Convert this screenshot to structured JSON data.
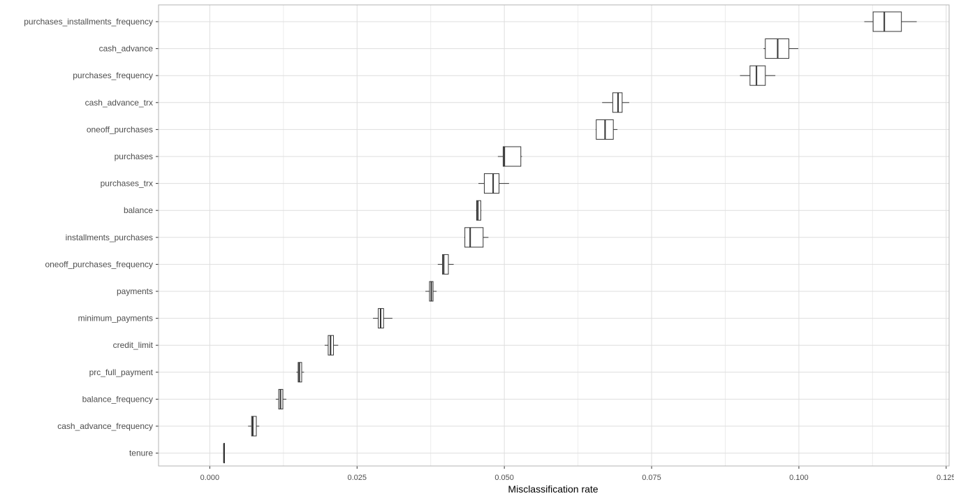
{
  "chart_data": {
    "type": "boxplot",
    "title": "",
    "xlabel": "Misclassification rate",
    "ylabel": "",
    "xlim": [
      -0.0087,
      0.1255
    ],
    "x_ticks": [
      0,
      0.025,
      0.05,
      0.075,
      0.1,
      0.125
    ],
    "x_tick_labels": [
      "0.000",
      "0.025",
      "0.050",
      "0.075",
      "0.100",
      "0.125"
    ],
    "grid": true,
    "orientation": "horizontal",
    "colors": {
      "box_stroke": "#333333",
      "grid_major": "#dedede",
      "grid_minor": "#ececec",
      "panel_border": "#b3b3b3",
      "background": "#ffffff"
    },
    "series": [
      {
        "category": "purchases_installments_frequency",
        "min": 0.1111,
        "q1": 0.1126,
        "median": 0.1145,
        "q3": 0.1174,
        "max": 0.12
      },
      {
        "category": "cash_advance",
        "min": 0.094,
        "q1": 0.0943,
        "median": 0.0964,
        "q3": 0.0983,
        "max": 0.0999
      },
      {
        "category": "purchases_frequency",
        "min": 0.09,
        "q1": 0.0917,
        "median": 0.0928,
        "q3": 0.0943,
        "max": 0.096
      },
      {
        "category": "cash_advance_trx",
        "min": 0.0666,
        "q1": 0.0684,
        "median": 0.0693,
        "q3": 0.07,
        "max": 0.0712
      },
      {
        "category": "oneoff_purchases",
        "min": 0.0655,
        "q1": 0.0656,
        "median": 0.0671,
        "q3": 0.0685,
        "max": 0.0692
      },
      {
        "category": "purchases",
        "min": 0.0489,
        "q1": 0.0498,
        "median": 0.05,
        "q3": 0.0528,
        "max": 0.053
      },
      {
        "category": "purchases_trx",
        "min": 0.0456,
        "q1": 0.0466,
        "median": 0.0481,
        "q3": 0.0491,
        "max": 0.0508
      },
      {
        "category": "balance",
        "min": 0.0452,
        "q1": 0.0453,
        "median": 0.0455,
        "q3": 0.046,
        "max": 0.0461
      },
      {
        "category": "installments_purchases",
        "min": 0.0432,
        "q1": 0.0433,
        "median": 0.0442,
        "q3": 0.0464,
        "max": 0.0473
      },
      {
        "category": "oneoff_purchases_frequency",
        "min": 0.0387,
        "q1": 0.0395,
        "median": 0.0397,
        "q3": 0.0405,
        "max": 0.0414
      },
      {
        "category": "payments",
        "min": 0.0366,
        "q1": 0.0373,
        "median": 0.0376,
        "q3": 0.0379,
        "max": 0.0385
      },
      {
        "category": "minimum_payments",
        "min": 0.0277,
        "q1": 0.0286,
        "median": 0.029,
        "q3": 0.0295,
        "max": 0.031
      },
      {
        "category": "credit_limit",
        "min": 0.0195,
        "q1": 0.0201,
        "median": 0.0205,
        "q3": 0.021,
        "max": 0.0218
      },
      {
        "category": "prc_full_payment",
        "min": 0.0147,
        "q1": 0.015,
        "median": 0.0152,
        "q3": 0.0156,
        "max": 0.016
      },
      {
        "category": "balance_frequency",
        "min": 0.0112,
        "q1": 0.0117,
        "median": 0.012,
        "q3": 0.0124,
        "max": 0.013
      },
      {
        "category": "cash_advance_frequency",
        "min": 0.0065,
        "q1": 0.0071,
        "median": 0.0073,
        "q3": 0.0079,
        "max": 0.0084
      },
      {
        "category": "tenure",
        "min": 0.0024,
        "q1": 0.0024,
        "median": 0.0024,
        "q3": 0.0025,
        "max": 0.0025
      }
    ]
  }
}
